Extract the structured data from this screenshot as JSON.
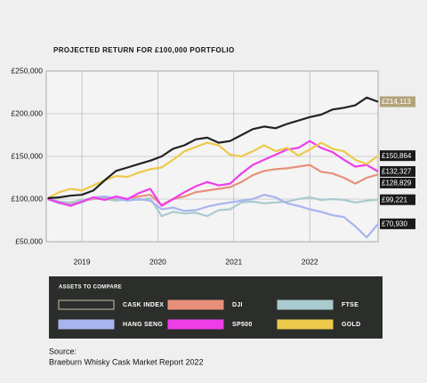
{
  "chart_data": {
    "type": "line",
    "title": "PROJECTED RETURN FOR £100,000 PORTFOLIO",
    "x": [
      2018.55,
      2018.7,
      2018.85,
      2019,
      2019.15,
      2019.3,
      2019.45,
      2019.6,
      2019.75,
      2019.9,
      2020.05,
      2020.2,
      2020.35,
      2020.5,
      2020.65,
      2020.8,
      2020.95,
      2021.1,
      2021.25,
      2021.4,
      2021.55,
      2021.7,
      2021.85,
      2022,
      2022.15,
      2022.3,
      2022.45,
      2022.6,
      2022.75,
      2022.9
    ],
    "xlim": [
      2018.53,
      2022.9
    ],
    "xticks": [
      2019,
      2020,
      2021,
      2022
    ],
    "ylim": [
      50000,
      250000
    ],
    "yticks": [
      {
        "value": 50000,
        "label": "£50,000"
      },
      {
        "value": 100000,
        "label": "£100,000"
      },
      {
        "value": 150000,
        "label": "£150,000"
      },
      {
        "value": 200000,
        "label": "£200,000"
      },
      {
        "value": 250000,
        "label": "£250,000"
      }
    ],
    "grid": true,
    "legend_title": "ASSETS TO COMPARE",
    "series": [
      {
        "name": "CASK INDEX",
        "color": "#222222",
        "values": [
          101000,
          102000,
          104000,
          105000,
          110000,
          122000,
          133000,
          137000,
          141000,
          145000,
          150000,
          159000,
          163000,
          170000,
          172000,
          166000,
          168000,
          175000,
          182000,
          185000,
          183000,
          188000,
          192000,
          196000,
          199000,
          205000,
          207000,
          210000,
          219000,
          214113
        ],
        "value_labels": [
          null,
          null,
          null,
          null,
          null,
          null,
          null,
          null,
          null,
          null,
          null,
          null,
          null,
          null,
          null,
          null,
          null,
          null,
          null,
          null,
          null,
          null,
          null,
          null,
          null,
          null,
          null,
          null,
          null,
          "£214,113"
        ]
      },
      {
        "name": "DJI",
        "color": "#e8907a",
        "values": [
          100000,
          97000,
          95000,
          98000,
          100000,
          101000,
          99000,
          100000,
          103000,
          105000,
          93000,
          100000,
          103000,
          108000,
          110000,
          112000,
          114000,
          120000,
          128000,
          133000,
          135000,
          136000,
          138000,
          140000,
          132000,
          130000,
          125000,
          118000,
          125000,
          128829
        ],
        "value_labels": [
          null,
          null,
          null,
          null,
          null,
          null,
          null,
          null,
          null,
          null,
          null,
          null,
          null,
          null,
          null,
          null,
          null,
          null,
          null,
          null,
          null,
          null,
          null,
          null,
          null,
          null,
          null,
          null,
          null,
          "£128,829"
        ]
      },
      {
        "name": "FTSE",
        "color": "#a9cbcf",
        "values": [
          100000,
          97000,
          96000,
          99000,
          101000,
          100000,
          98000,
          100000,
          99000,
          101000,
          80000,
          85000,
          83000,
          84000,
          80000,
          87000,
          88000,
          96000,
          97000,
          95000,
          96000,
          97000,
          100000,
          102000,
          99000,
          100000,
          99000,
          96000,
          98000,
          99221
        ],
        "value_labels": [
          null,
          null,
          null,
          null,
          null,
          null,
          null,
          null,
          null,
          null,
          null,
          null,
          null,
          null,
          null,
          null,
          null,
          null,
          null,
          null,
          null,
          null,
          null,
          null,
          null,
          null,
          null,
          null,
          null,
          "£99,221"
        ]
      },
      {
        "name": "HANG SENG",
        "color": "#a8b4ef",
        "values": [
          100000,
          95000,
          93000,
          96000,
          102000,
          103000,
          101000,
          98000,
          100000,
          98000,
          88000,
          90000,
          86000,
          87000,
          91000,
          94000,
          96000,
          98000,
          100000,
          105000,
          102000,
          95000,
          92000,
          88000,
          85000,
          81000,
          79000,
          68000,
          55000,
          70930
        ],
        "value_labels": [
          null,
          null,
          null,
          null,
          null,
          null,
          null,
          null,
          null,
          null,
          null,
          null,
          null,
          null,
          null,
          null,
          null,
          null,
          null,
          null,
          null,
          null,
          null,
          null,
          null,
          null,
          null,
          null,
          null,
          "£70,930"
        ]
      },
      {
        "name": "SP500",
        "color": "#ee3ee8",
        "values": [
          100000,
          96000,
          92000,
          97000,
          102000,
          99000,
          103000,
          100000,
          107000,
          112000,
          92000,
          100000,
          108000,
          115000,
          120000,
          116000,
          118000,
          130000,
          140000,
          146000,
          152000,
          158000,
          160000,
          168000,
          160000,
          155000,
          146000,
          138000,
          140000,
          132327
        ],
        "value_labels": [
          null,
          null,
          null,
          null,
          null,
          null,
          null,
          null,
          null,
          null,
          null,
          null,
          null,
          null,
          null,
          null,
          null,
          null,
          null,
          null,
          null,
          null,
          null,
          null,
          null,
          null,
          null,
          null,
          null,
          "£132,327"
        ]
      },
      {
        "name": "GOLD",
        "color": "#ecc94a",
        "values": [
          101000,
          108000,
          112000,
          110000,
          116000,
          122000,
          127000,
          126000,
          131000,
          135000,
          137000,
          146000,
          156000,
          161000,
          166000,
          163000,
          152000,
          150000,
          156000,
          163000,
          156000,
          160000,
          151000,
          158000,
          166000,
          159000,
          156000,
          146000,
          141000,
          150864
        ],
        "value_labels": [
          null,
          null,
          null,
          null,
          null,
          null,
          null,
          null,
          null,
          null,
          null,
          null,
          null,
          null,
          null,
          null,
          null,
          null,
          null,
          null,
          null,
          null,
          null,
          null,
          null,
          null,
          null,
          null,
          null,
          "£150,864"
        ]
      }
    ],
    "source_label": "Source:",
    "source": "Braeburn Whisky Cask Market Report 2022"
  }
}
